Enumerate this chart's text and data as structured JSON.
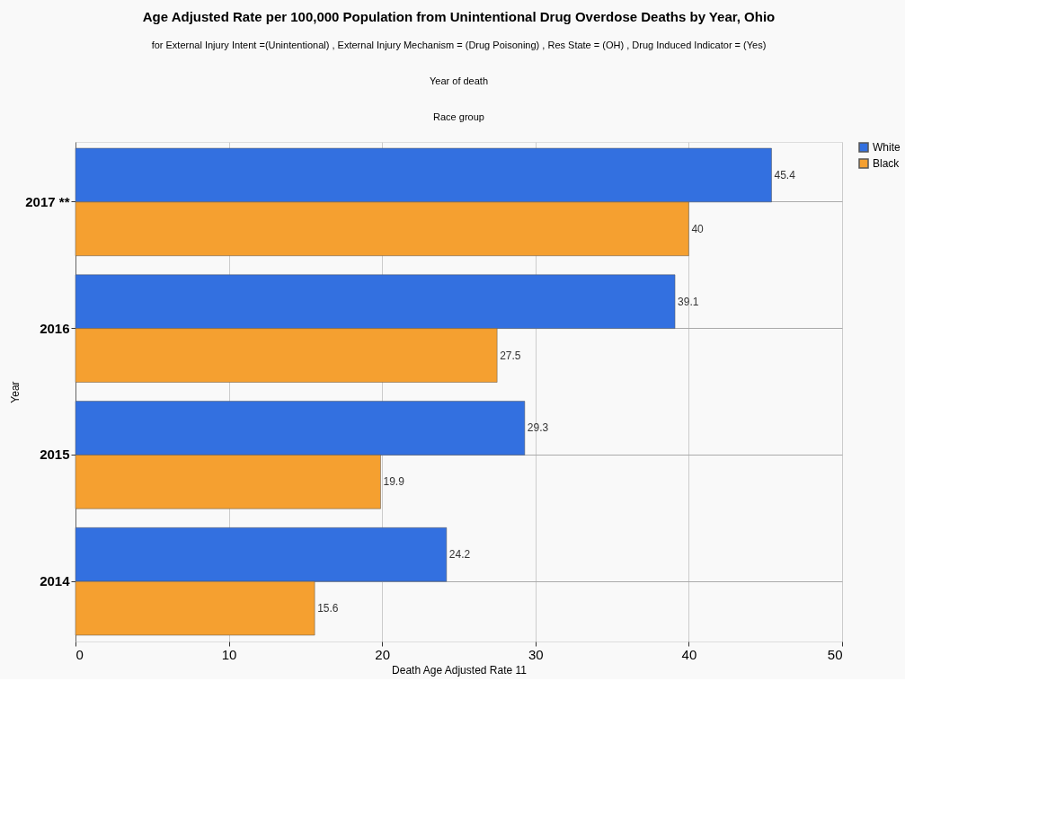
{
  "chart_data": {
    "type": "bar",
    "orientation": "horizontal",
    "title": "Age Adjusted Rate per 100,000 Population from Unintentional Drug Overdose Deaths by Year, Ohio",
    "subtitle": "for External Injury Intent =(Unintentional) , External Injury Mechanism = (Drug Poisoning) , Res State = (OH) , Drug Induced Indicator = (Yes)",
    "annotations": [
      "Year of death",
      "Race group"
    ],
    "xlabel": "Death Age Adjusted Rate 11",
    "ylabel": "Year",
    "categories": [
      "2017 **",
      "2016",
      "2015",
      "2014"
    ],
    "series": [
      {
        "name": "White",
        "color": "#3370e0",
        "values": [
          45.4,
          39.1,
          29.3,
          24.2
        ]
      },
      {
        "name": "Black",
        "color": "#f5a030",
        "values": [
          40,
          27.5,
          19.9,
          15.6
        ]
      }
    ],
    "xlim": [
      0,
      50
    ],
    "xticks": [
      0,
      10,
      20,
      30,
      40,
      50
    ],
    "grid": true,
    "legend": "top right",
    "data_labels": true
  }
}
